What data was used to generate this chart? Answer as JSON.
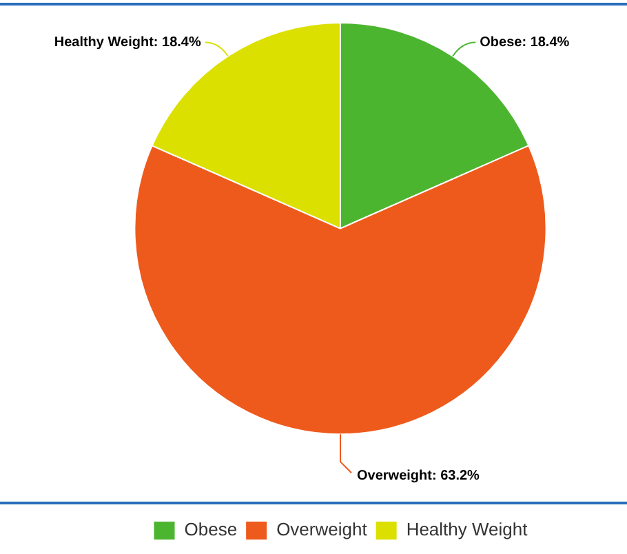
{
  "chart_data": {
    "type": "pie",
    "categories": [
      "Obese",
      "Overweight",
      "Healthy Weight"
    ],
    "values": [
      18.4,
      63.2,
      18.4
    ],
    "colors": [
      "#4cb530",
      "#ee5a1c",
      "#dce000"
    ],
    "value_labels": [
      "Obese: 18.4%",
      "Overweight: 63.2%",
      "Healthy Weight: 18.4%"
    ],
    "legend": "bottom"
  }
}
